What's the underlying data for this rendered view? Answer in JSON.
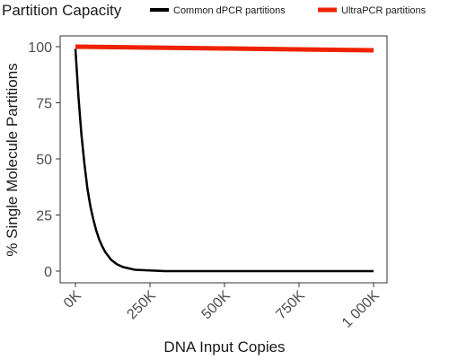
{
  "chart_data": {
    "type": "line",
    "title": "",
    "legend": {
      "title": "Partition Capacity",
      "placement": "top-left"
    },
    "xlabel": "DNA Input Copies",
    "ylabel": "% Single Molecule Partitions",
    "xlim": [
      0,
      1000000
    ],
    "ylim": [
      0,
      100
    ],
    "x_ticks": [
      {
        "value": 0,
        "label": "0K"
      },
      {
        "value": 250000,
        "label": "250K"
      },
      {
        "value": 500000,
        "label": "500K"
      },
      {
        "value": 750000,
        "label": "750K"
      },
      {
        "value": 1000000,
        "label": "1 000K"
      }
    ],
    "y_ticks": [
      {
        "value": 0,
        "label": "0"
      },
      {
        "value": 25,
        "label": "25"
      },
      {
        "value": 50,
        "label": "50"
      },
      {
        "value": 75,
        "label": "75"
      },
      {
        "value": 100,
        "label": "100"
      }
    ],
    "grid": false,
    "series": [
      {
        "name": "Common dPCR partitions",
        "color": "#000000",
        "x": [
          0,
          10000,
          20000,
          30000,
          40000,
          50000,
          60000,
          70000,
          80000,
          90000,
          100000,
          120000,
          140000,
          160000,
          200000,
          300000,
          400000,
          500000,
          600000,
          700000,
          800000,
          900000,
          1000000
        ],
        "y": [
          99,
          78,
          61,
          48,
          37,
          29,
          23,
          18,
          14,
          11,
          8.5,
          5,
          3,
          1.8,
          0.6,
          0,
          0,
          0,
          0,
          0,
          0,
          0,
          0
        ]
      },
      {
        "name": "UltraPCR partitions",
        "color": "#ee2200",
        "x": [
          0,
          250000,
          500000,
          750000,
          1000000
        ],
        "y": [
          100,
          99.6,
          99.2,
          98.8,
          98.4
        ]
      }
    ]
  }
}
